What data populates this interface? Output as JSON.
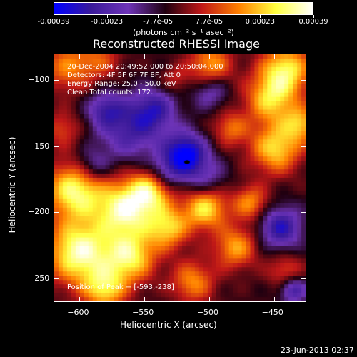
{
  "colorbar": {
    "tick_labels": [
      "-0.00039",
      "-0.00023",
      "-7.7e-05",
      "7.7e-05",
      "0.00023",
      "0.00039"
    ],
    "unit_label": "(photons cm⁻² s⁻¹ asec⁻²)",
    "range": [
      -0.00039,
      0.00039
    ],
    "colormap": [
      "#0000ff",
      "#3a1a9a",
      "#6e34b8",
      "#200010",
      "#c01818",
      "#ff8000",
      "#ffff40",
      "#ffffff"
    ]
  },
  "chart_data": {
    "type": "heatmap",
    "title": "Reconstructed RHESSI Image",
    "xlabel": "Heliocentric X (arcsec)",
    "ylabel": "Heliocentric Y (arcsec)",
    "xlim": [
      -620,
      -425
    ],
    "ylim": [
      -268,
      -80
    ],
    "x_ticks": [
      -600,
      -550,
      -500,
      -450
    ],
    "y_ticks": [
      -100,
      -150,
      -200,
      -250
    ],
    "peak": [
      -593,
      -238
    ],
    "min_location": [
      -517,
      -162
    ]
  },
  "annotations": {
    "time_range": "20-Dec-2004 20:49:52.000 to 20:50:04.000",
    "detectors": "Detectors: 4F 5F 6F 7F 8F, Att 0",
    "energy": "Energy Range: 25.0 - 50.0 keV",
    "clean": "Clean     Total counts: 172.",
    "peak": "Position of Peak = [-593,-238]"
  },
  "footer": {
    "date": "23-Jun-2013 02:37"
  }
}
